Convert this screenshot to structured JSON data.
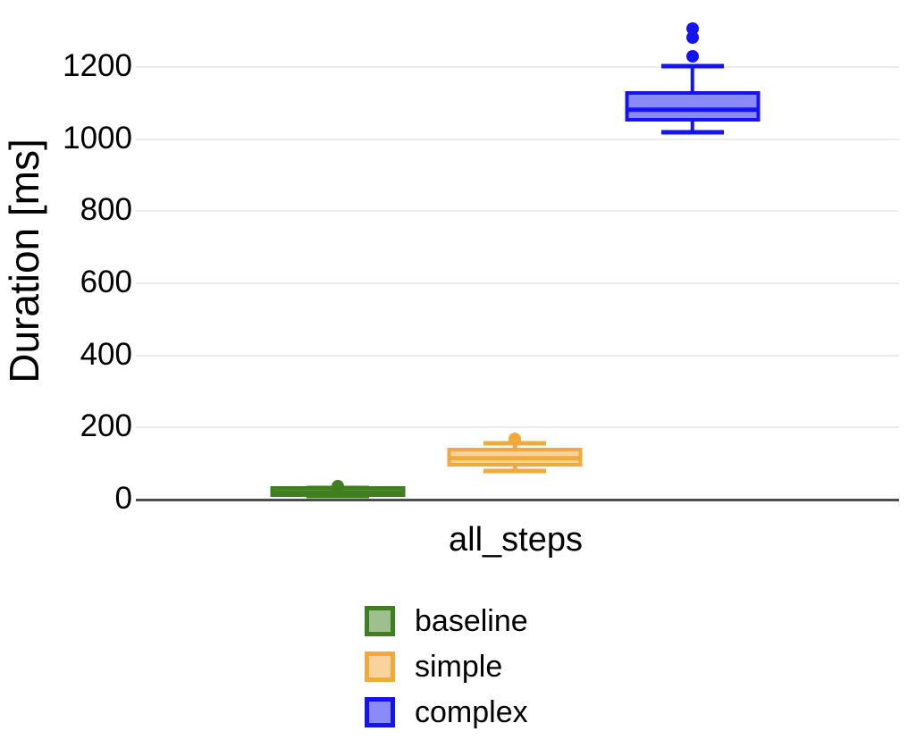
{
  "chart_data": {
    "type": "boxplot",
    "title": "",
    "xlabel": "all_steps",
    "ylabel": "Duration [ms]",
    "categories": [
      "all_steps"
    ],
    "yticks": [
      0,
      200,
      400,
      600,
      800,
      1000,
      1200
    ],
    "ylim": [
      0,
      1340
    ],
    "grid": true,
    "legend_position": "bottom-left",
    "series": [
      {
        "name": "baseline",
        "color": "#3F7F1F",
        "fill": "#9FBF8F",
        "whisker_low": 9,
        "q1": 15,
        "median": 20,
        "q3": 25,
        "whisker_high": 31,
        "outliers": [
          36
        ]
      },
      {
        "name": "simple",
        "color": "#F2A93B",
        "fill": "#F8D49D",
        "whisker_low": 80,
        "q1": 100,
        "median": 115,
        "q3": 133,
        "whisker_high": 155,
        "outliers": [
          168
        ]
      },
      {
        "name": "complex",
        "color": "#1414F0",
        "fill": "#8A8AF8",
        "whisker_low": 1020,
        "q1": 1058,
        "median": 1081,
        "q3": 1121,
        "whisker_high": 1203,
        "outliers": [
          1230,
          1282,
          1306
        ]
      }
    ]
  },
  "colors": {
    "background": "#FFFFFF",
    "gridline": "#ECECEC",
    "axis_line": "#4D4D4D",
    "text": "#000000"
  }
}
